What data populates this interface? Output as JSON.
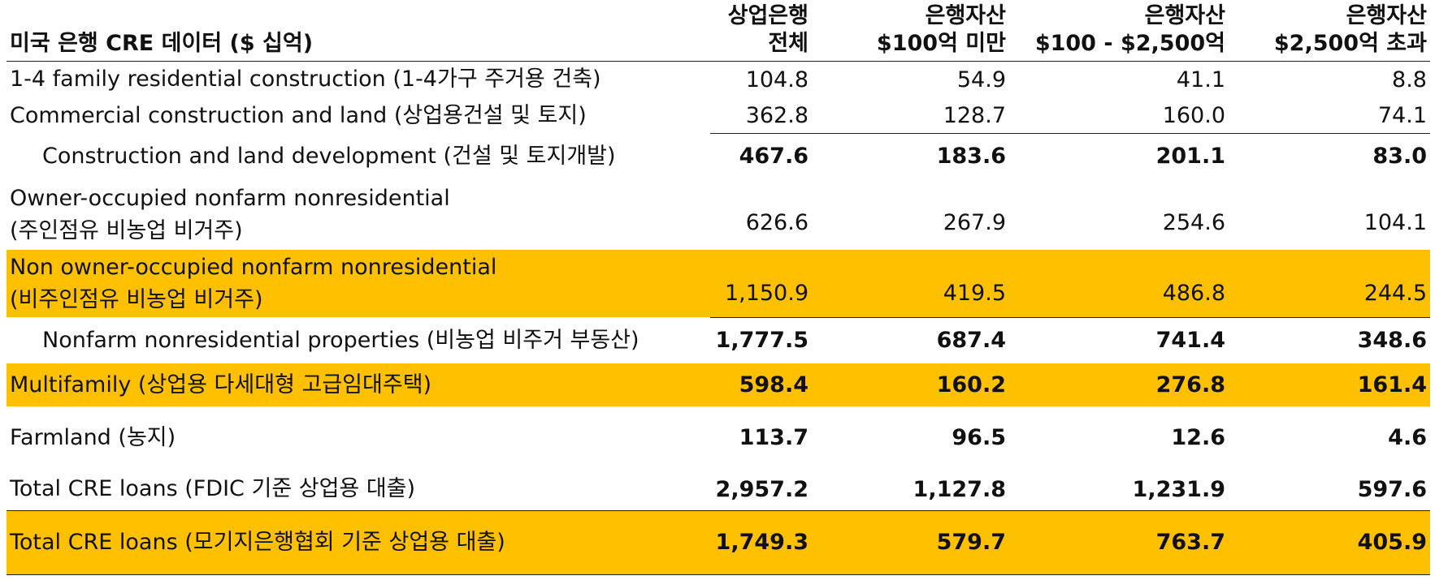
{
  "table": {
    "header": [
      [
        "미국 은행 CRE 데이터 ($ 십억)"
      ],
      [
        "상업은행",
        "전체"
      ],
      [
        "은행자산",
        "$100억 미만"
      ],
      [
        "은행자산",
        "$100 - $2,500억"
      ],
      [
        "은행자산",
        "$2,500억 초과"
      ]
    ],
    "rows": [
      {
        "label": [
          "1-4 family residential construction (1-4가구 주거용 건축)"
        ],
        "values": [
          "104.8",
          "54.9",
          "41.1",
          "8.8"
        ]
      },
      {
        "label": [
          "Commercial construction and land (상업용건설 및 토지)"
        ],
        "values": [
          "362.8",
          "128.7",
          "160.0",
          "74.1"
        ]
      },
      {
        "label": [
          "Construction and land development (건설 및 토지개발)"
        ],
        "values": [
          "467.6",
          "183.6",
          "201.1",
          "83.0"
        ]
      },
      {
        "label": [
          "Owner-occupied nonfarm nonresidential",
          "(주인점유 비농업 비거주)"
        ],
        "values": [
          "626.6",
          "267.9",
          "254.6",
          "104.1"
        ]
      },
      {
        "label": [
          "Non owner-occupied nonfarm nonresidential",
          "(비주인점유 비농업 비거주)"
        ],
        "values": [
          "1,150.9",
          "419.5",
          "486.8",
          "244.5"
        ]
      },
      {
        "label": [
          "Nonfarm nonresidential properties (비농업 비주거 부동산)"
        ],
        "values": [
          "1,777.5",
          "687.4",
          "741.4",
          "348.6"
        ]
      },
      {
        "label": [
          "Multifamily (상업용 다세대형 고급임대주택)"
        ],
        "values": [
          "598.4",
          "160.2",
          "276.8",
          "161.4"
        ]
      },
      {
        "label": [
          "Farmland (농지)"
        ],
        "values": [
          "113.7",
          "96.5",
          "12.6",
          "4.6"
        ]
      },
      {
        "label": [
          "Total CRE loans (FDIC 기준 상업용 대출)"
        ],
        "values": [
          "2,957.2",
          "1,127.8",
          "1,231.9",
          "597.6"
        ]
      },
      {
        "label": [
          "Total CRE loans (모기지은행협회 기준 상업용 대출)"
        ],
        "values": [
          "1,749.3",
          "579.7",
          "763.7",
          "405.9"
        ]
      }
    ]
  }
}
